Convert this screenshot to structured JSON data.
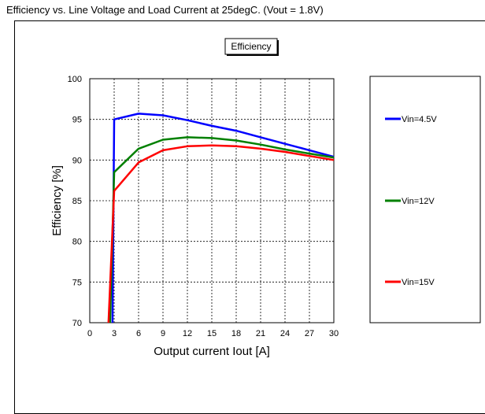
{
  "caption": "Efficiency vs. Line Voltage and Load Current at 25degC. (Vout = 1.8V)",
  "chart_data": {
    "type": "line",
    "title": "Efficiency",
    "xlabel": "Output current Iout [A]",
    "ylabel": "Efficiency [%]",
    "xlim": [
      0,
      30
    ],
    "ylim": [
      70,
      100
    ],
    "xticks": [
      0,
      3,
      6,
      9,
      12,
      15,
      18,
      21,
      24,
      27,
      30
    ],
    "yticks": [
      70,
      75,
      80,
      85,
      90,
      95,
      100
    ],
    "grid": true,
    "legend_position": "right",
    "series": [
      {
        "name": "Vin=4.5V",
        "color": "#0000ff",
        "x": [
          2.8,
          3,
          6,
          9,
          12,
          15,
          18,
          21,
          24,
          27,
          30
        ],
        "y": [
          70,
          95.0,
          95.7,
          95.5,
          94.9,
          94.2,
          93.6,
          92.8,
          92.0,
          91.2,
          90.4
        ]
      },
      {
        "name": "Vin=12V",
        "color": "#008000",
        "x": [
          2.5,
          3,
          6,
          9,
          12,
          15,
          18,
          21,
          24,
          27,
          30
        ],
        "y": [
          70,
          88.5,
          91.4,
          92.5,
          92.8,
          92.7,
          92.4,
          91.9,
          91.3,
          90.8,
          90.3
        ]
      },
      {
        "name": "Vin=15V",
        "color": "#ff0000",
        "x": [
          2.3,
          3,
          6,
          9,
          12,
          15,
          18,
          21,
          24,
          27,
          30
        ],
        "y": [
          70,
          86.2,
          89.7,
          91.2,
          91.7,
          91.8,
          91.7,
          91.4,
          91.0,
          90.5,
          90.0
        ]
      }
    ]
  }
}
